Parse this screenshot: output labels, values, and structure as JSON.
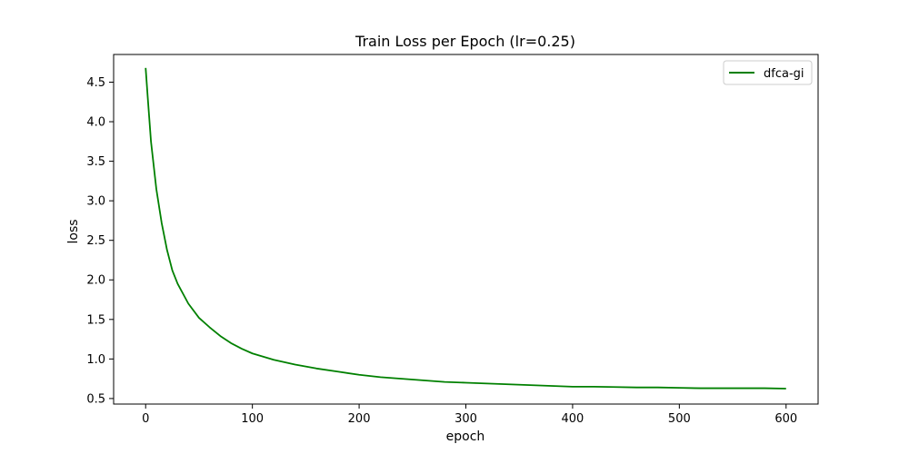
{
  "chart_data": {
    "type": "line",
    "title": "Train Loss per Epoch (lr=0.25)",
    "xlabel": "epoch",
    "ylabel": "loss",
    "xlim": [
      -30,
      630
    ],
    "ylim": [
      0.43,
      4.85
    ],
    "x_ticks": [
      0,
      100,
      200,
      300,
      400,
      500,
      600
    ],
    "y_ticks": [
      0.5,
      1.0,
      1.5,
      2.0,
      2.5,
      3.0,
      3.5,
      4.0,
      4.5
    ],
    "x_tick_labels": [
      "0",
      "100",
      "200",
      "300",
      "400",
      "500",
      "600"
    ],
    "y_tick_labels": [
      "0.5",
      "1.0",
      "1.5",
      "2.0",
      "2.5",
      "3.0",
      "3.5",
      "4.0",
      "4.5"
    ],
    "grid": false,
    "legend": {
      "placement": "top-right"
    },
    "series": [
      {
        "name": "dfca-gi",
        "color": "#008000",
        "x": [
          0,
          2,
          5,
          10,
          15,
          20,
          25,
          30,
          40,
          50,
          60,
          70,
          80,
          90,
          100,
          120,
          140,
          160,
          180,
          200,
          220,
          240,
          260,
          280,
          300,
          320,
          340,
          360,
          380,
          400,
          420,
          440,
          460,
          480,
          500,
          520,
          540,
          560,
          580,
          600
        ],
        "values": [
          4.68,
          4.3,
          3.75,
          3.15,
          2.72,
          2.38,
          2.12,
          1.95,
          1.7,
          1.52,
          1.4,
          1.29,
          1.2,
          1.13,
          1.07,
          0.99,
          0.93,
          0.88,
          0.84,
          0.8,
          0.77,
          0.75,
          0.73,
          0.71,
          0.7,
          0.69,
          0.68,
          0.67,
          0.66,
          0.65,
          0.65,
          0.645,
          0.64,
          0.64,
          0.635,
          0.63,
          0.63,
          0.63,
          0.63,
          0.625
        ]
      }
    ]
  }
}
